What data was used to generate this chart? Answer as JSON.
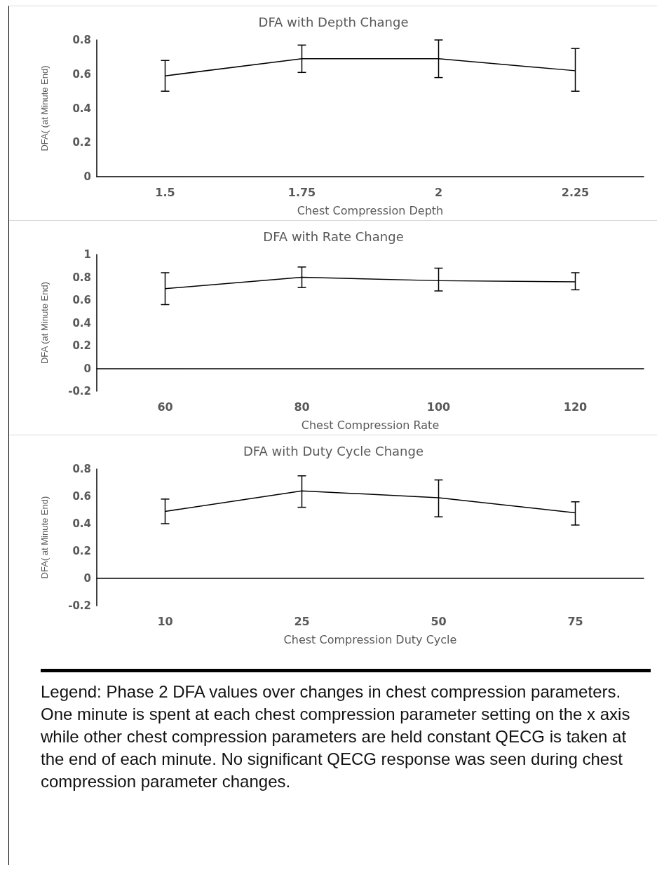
{
  "chart_data": [
    {
      "type": "line",
      "title": "DFA with Depth Change",
      "xlabel": "Chest Compression Depth",
      "ylabel": "DFA( (at Minute End)",
      "categories": [
        "1.5",
        "1.75",
        "2",
        "2.25"
      ],
      "color": "#000000",
      "values": [
        0.59,
        0.69,
        0.69,
        0.62
      ],
      "errors": [
        [
          0.5,
          0.68
        ],
        [
          0.61,
          0.77
        ],
        [
          0.58,
          0.8
        ],
        [
          0.5,
          0.75
        ]
      ],
      "ylim": [
        0,
        0.8
      ],
      "yticks": [
        0,
        0.2,
        0.4,
        0.6,
        0.8
      ]
    },
    {
      "type": "line",
      "title": "DFA with Rate Change",
      "xlabel": "Chest Compression Rate",
      "ylabel": "DFA (at Minute End)",
      "categories": [
        "60",
        "80",
        "100",
        "120"
      ],
      "color": "#000000",
      "values": [
        0.7,
        0.8,
        0.77,
        0.76
      ],
      "errors": [
        [
          0.56,
          0.84
        ],
        [
          0.71,
          0.89
        ],
        [
          0.68,
          0.88
        ],
        [
          0.69,
          0.84
        ]
      ],
      "ylim": [
        -0.2,
        1
      ],
      "yticks": [
        -0.2,
        0,
        0.2,
        0.4,
        0.6,
        0.8,
        1
      ]
    },
    {
      "type": "line",
      "title": "DFA with Duty Cycle Change",
      "xlabel": "Chest Compression Duty Cycle",
      "ylabel": "DFA( at Minute End)",
      "categories": [
        "10",
        "25",
        "50",
        "75"
      ],
      "color": "#000000",
      "values": [
        0.49,
        0.64,
        0.59,
        0.48
      ],
      "errors": [
        [
          0.4,
          0.58
        ],
        [
          0.52,
          0.75
        ],
        [
          0.45,
          0.72
        ],
        [
          0.39,
          0.56
        ]
      ],
      "ylim": [
        -0.2,
        0.8
      ],
      "yticks": [
        -0.2,
        0,
        0.2,
        0.4,
        0.6,
        0.8
      ],
      "annotations": [
        "Legend: Phase 2 DFA values over changes in chest compression parameters.  One minute is spent at  each chest compression parameter setting on the x axis while other chest compression parameters are held constant  QECG is taken at the end of each minute.  No significant QECG response was seen during chest compression parameter changes."
      ]
    }
  ]
}
